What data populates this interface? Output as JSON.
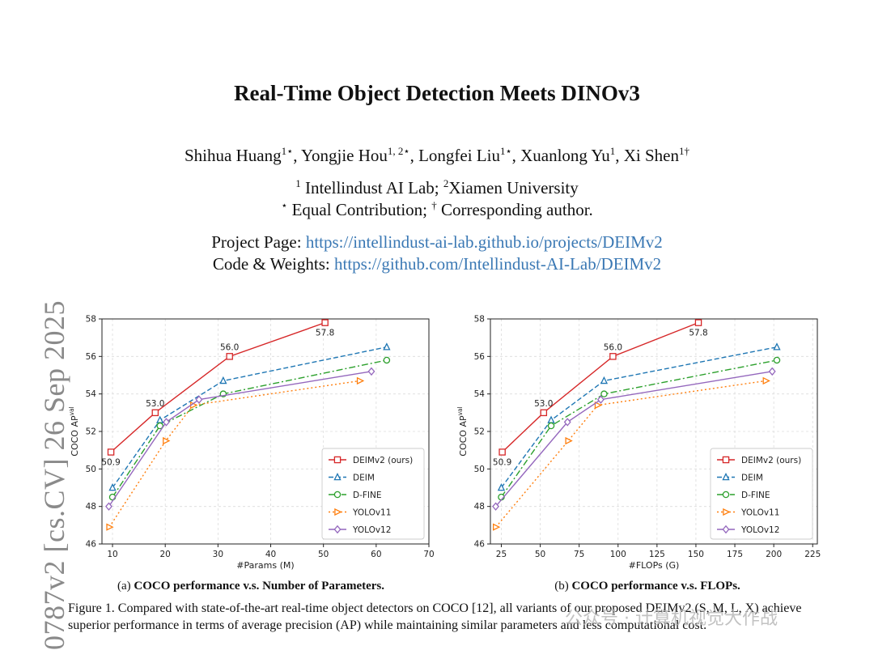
{
  "paper": {
    "title": "Real-Time Object Detection Meets DINOv3",
    "authors": [
      {
        "name": "Shihua Huang",
        "sup": "1⋆"
      },
      {
        "name": "Yongjie Hou",
        "sup": "1, 2⋆"
      },
      {
        "name": "Longfei Liu",
        "sup": "1⋆"
      },
      {
        "name": "Xuanlong Yu",
        "sup": "1"
      },
      {
        "name": "Xi Shen",
        "sup": "1†"
      }
    ],
    "aff_line1": {
      "sup1": "1",
      "text1": " Intellindust AI Lab; ",
      "sup2": "2",
      "text2": "Xiamen University"
    },
    "aff_line2": {
      "sup1": "⋆",
      "text1": " Equal Contribution; ",
      "sup2": "†",
      "text2": " Corresponding author."
    },
    "project_label": "Project Page: ",
    "project_url": "https://intellindust-ai-lab.github.io/projects/DEIMv2",
    "code_label": "Code & Weights: ",
    "code_url": "https://github.com/Intellindust-AI-Lab/DEIMv2",
    "arxiv_id": "0787v2  [cs.CV]  26 Sep 2025",
    "subcaption_a_prefix": "(a) ",
    "subcaption_a": "COCO performance v.s. Number of Parameters.",
    "subcaption_b_prefix": "(b) ",
    "subcaption_b": "COCO performance v.s. FLOPs.",
    "figure_caption": "Figure 1.  Compared with state-of-the-art real-time object detectors on COCO [12], all variants of our proposed DEIMv2 (S, M, L, X) achieve superior performance in terms of average precision (AP) while maintaining similar parameters and less computational cost.",
    "watermark": "公众号 · 计算机视觉大作战"
  },
  "chart_data": [
    {
      "type": "line",
      "xlabel": "#Params (M)",
      "ylabel": "COCO AP",
      "ylabel_sup": "val",
      "xlim": [
        8,
        70
      ],
      "ylim": [
        46,
        58
      ],
      "xticks": [
        10,
        20,
        30,
        40,
        50,
        60,
        70
      ],
      "yticks": [
        46,
        48,
        50,
        52,
        54,
        56,
        58
      ],
      "grid": true,
      "legend_position": "lower-right",
      "series": [
        {
          "name": "DEIMv2 (ours)",
          "color": "#d62728",
          "dash": "",
          "marker": "square",
          "points": [
            [
              9.7,
              50.9
            ],
            [
              18.1,
              53.0
            ],
            [
              32.2,
              56.0
            ],
            [
              50.3,
              57.8
            ]
          ]
        },
        {
          "name": "DEIM",
          "color": "#1f77b4",
          "dash": "6,3",
          "marker": "triangle",
          "points": [
            [
              10,
              49.0
            ],
            [
              19,
              52.6
            ],
            [
              31,
              54.7
            ],
            [
              62,
              56.5
            ]
          ]
        },
        {
          "name": "D-FINE",
          "color": "#2ca02c",
          "dash": "8,3,2,3",
          "marker": "circle",
          "points": [
            [
              10,
              48.5
            ],
            [
              19,
              52.3
            ],
            [
              31,
              54.0
            ],
            [
              62,
              55.8
            ]
          ]
        },
        {
          "name": "YOLOv11",
          "color": "#ff7f0e",
          "dash": "2,3",
          "marker": "triangle-right",
          "points": [
            [
              9.4,
              46.9
            ],
            [
              20.1,
              51.5
            ],
            [
              25.3,
              53.4
            ],
            [
              56.9,
              54.7
            ]
          ]
        },
        {
          "name": "YOLOv12",
          "color": "#9467bd",
          "dash": "",
          "marker": "diamond",
          "points": [
            [
              9.3,
              48.0
            ],
            [
              20.2,
              52.5
            ],
            [
              26.4,
              53.7
            ],
            [
              59.1,
              55.2
            ]
          ]
        }
      ],
      "annotations": [
        {
          "text": "50.9",
          "x": 9.7,
          "y": 50.9,
          "pos": "below"
        },
        {
          "text": "53.0",
          "x": 18.1,
          "y": 53.0,
          "pos": "above"
        },
        {
          "text": "56.0",
          "x": 32.2,
          "y": 56.0,
          "pos": "above"
        },
        {
          "text": "57.8",
          "x": 50.3,
          "y": 57.8,
          "pos": "below"
        }
      ]
    },
    {
      "type": "line",
      "xlabel": "#FLOPs (G)",
      "ylabel": "COCO AP",
      "ylabel_sup": "val",
      "xlim": [
        18,
        228
      ],
      "ylim": [
        46,
        58
      ],
      "xticks": [
        25,
        50,
        75,
        100,
        125,
        150,
        175,
        200,
        225
      ],
      "yticks": [
        46,
        48,
        50,
        52,
        54,
        56,
        58
      ],
      "grid": true,
      "legend_position": "lower-right",
      "series": [
        {
          "name": "DEIMv2 (ours)",
          "color": "#d62728",
          "dash": "",
          "marker": "square",
          "points": [
            [
              25.6,
              50.9
            ],
            [
              52.2,
              53.0
            ],
            [
              96.7,
              56.0
            ],
            [
              151.6,
              57.8
            ]
          ]
        },
        {
          "name": "DEIM",
          "color": "#1f77b4",
          "dash": "6,3",
          "marker": "triangle",
          "points": [
            [
              25,
              49.0
            ],
            [
              57,
              52.6
            ],
            [
              91,
              54.7
            ],
            [
              202,
              56.5
            ]
          ]
        },
        {
          "name": "D-FINE",
          "color": "#2ca02c",
          "dash": "8,3,2,3",
          "marker": "circle",
          "points": [
            [
              25,
              48.5
            ],
            [
              57,
              52.3
            ],
            [
              91,
              54.0
            ],
            [
              202,
              55.8
            ]
          ]
        },
        {
          "name": "YOLOv11",
          "color": "#ff7f0e",
          "dash": "2,3",
          "marker": "triangle-right",
          "points": [
            [
              21.5,
              46.9
            ],
            [
              68.0,
              51.5
            ],
            [
              86.9,
              53.4
            ],
            [
              194.9,
              54.7
            ]
          ]
        },
        {
          "name": "YOLOv12",
          "color": "#9467bd",
          "dash": "",
          "marker": "diamond",
          "points": [
            [
              21.4,
              48.0
            ],
            [
              67.5,
              52.5
            ],
            [
              88.9,
              53.7
            ],
            [
              199.0,
              55.2
            ]
          ]
        }
      ],
      "annotations": [
        {
          "text": "50.9",
          "x": 25.6,
          "y": 50.9,
          "pos": "below"
        },
        {
          "text": "53.0",
          "x": 52.2,
          "y": 53.0,
          "pos": "above"
        },
        {
          "text": "56.0",
          "x": 96.7,
          "y": 56.0,
          "pos": "above"
        },
        {
          "text": "57.8",
          "x": 151.6,
          "y": 57.8,
          "pos": "below"
        }
      ]
    }
  ]
}
